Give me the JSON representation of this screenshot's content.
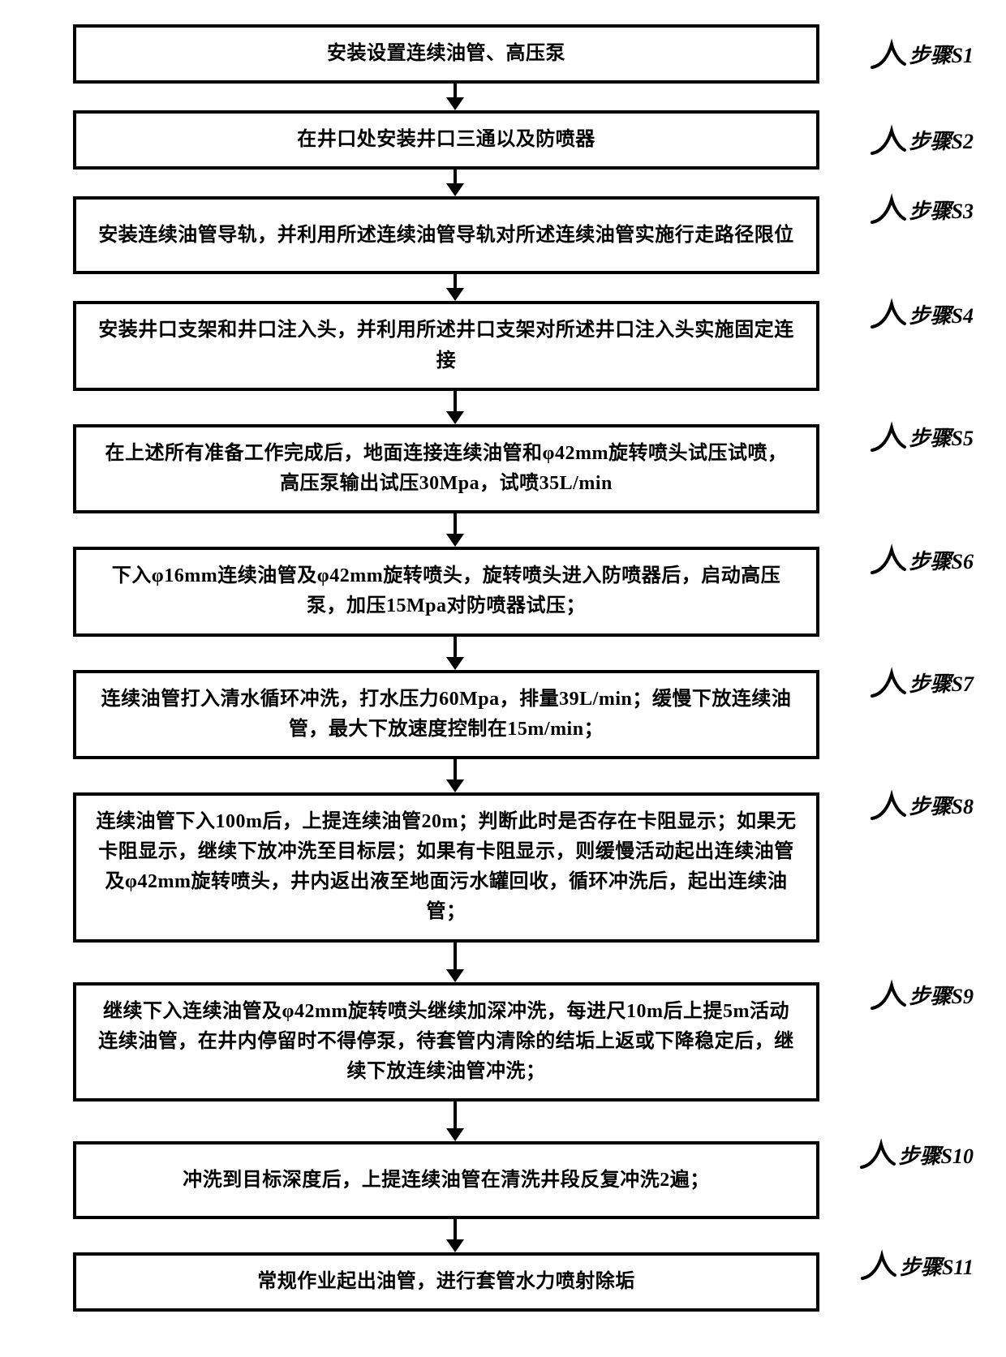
{
  "flowchart": {
    "type": "flowchart",
    "node_border_color": "#000000",
    "node_border_width": 4,
    "node_bg_color": "#ffffff",
    "node_text_color": "#000000",
    "node_font_size": 24,
    "node_font_weight": 900,
    "arrow_color": "#000000",
    "arrow_width": 4,
    "arrowhead_w": 22,
    "arrowhead_h": 16,
    "label_font_size": 26,
    "label_font_style": "italic",
    "steps": [
      {
        "id": "S1",
        "text": "安装设置连续油管、高压泵",
        "label": "步骤S1",
        "lines": 1,
        "lpos": "mid"
      },
      {
        "id": "S2",
        "text": "在井口处安装井口三通以及防喷器",
        "label": "步骤S2",
        "lines": 1,
        "lpos": "mid"
      },
      {
        "id": "S3",
        "text": "安装连续油管导轨，并利用所述连续油管导轨对所述连续油管实施行走路径限位",
        "label": "步骤S3",
        "lines": 2,
        "lpos": "top"
      },
      {
        "id": "S4",
        "text": "安装井口支架和井口注入头，并利用所述井口支架对所述井口注入头实施固定连接",
        "label": "步骤S4",
        "lines": 2,
        "lpos": "top"
      },
      {
        "id": "S5",
        "text": "在上述所有准备工作完成后，地面连接连续油管和φ42mm旋转喷头试压试喷，高压泵输出试压30Mpa，试喷35L/min",
        "label": "步骤S5",
        "lines": 2,
        "lpos": "top"
      },
      {
        "id": "S6",
        "text": "下入φ16mm连续油管及φ42mm旋转喷头，旋转喷头进入防喷器后，启动高压泵，加压15Mpa对防喷器试压；",
        "label": "步骤S6",
        "lines": 2,
        "lpos": "top"
      },
      {
        "id": "S7",
        "text": "连续油管打入清水循环冲洗，打水压力60Mpa，排量39L/min；缓慢下放连续油管，最大下放速度控制在15m/min；",
        "label": "步骤S7",
        "lines": 2,
        "lpos": "top"
      },
      {
        "id": "S8",
        "text": "连续油管下入100m后，上提连续油管20m；判断此时是否存在卡阻显示；如果无卡阻显示，继续下放冲洗至目标层；如果有卡阻显示，则缓慢活动起出连续油管及φ42mm旋转喷头，井内返出液至地面污水罐回收，循环冲洗后，起出连续油管；",
        "label": "步骤S8",
        "lines": 3,
        "lpos": "top"
      },
      {
        "id": "S9",
        "text": "继续下入连续油管及φ42mm旋转喷头继续加深冲洗，每进尺10m后上提5m活动连续油管，在井内停留时不得停泵，待套管内清除的结垢上返或下降稳定后，继续下放连续油管冲洗；",
        "label": "步骤S9",
        "lines": 3,
        "lpos": "top"
      },
      {
        "id": "S10",
        "text": "冲洗到目标深度后，上提连续油管在清洗井段反复冲洗2遍；",
        "label": "步骤S10",
        "lines": 2,
        "lpos": "top"
      },
      {
        "id": "S11",
        "text": "常规作业起出油管，进行套管水力喷射除垢",
        "label": "步骤S11",
        "lines": 1,
        "lpos": "top"
      }
    ],
    "arrow_sizes": [
      "short",
      "short",
      "short",
      "med",
      "med",
      "med",
      "med",
      "long",
      "long",
      "med"
    ]
  }
}
